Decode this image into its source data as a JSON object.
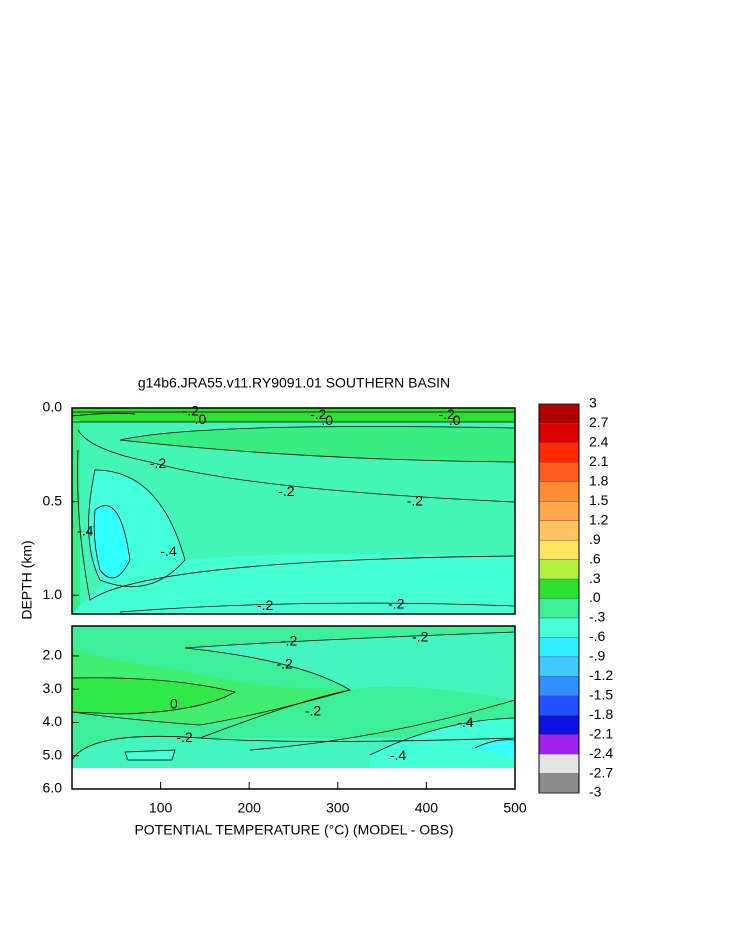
{
  "chart_data": {
    "type": "contour",
    "title": "g14b6.JRA55.v11.RY9091.01 SOUTHERN BASIN",
    "xlabel": "POTENTIAL TEMPERATURE (°C) (MODEL - OBS)",
    "ylabel": "DEPTH (km)",
    "xlim": [
      0,
      500
    ],
    "xticks": [
      100,
      200,
      300,
      400,
      500
    ],
    "panels": [
      {
        "ylim": [
          0,
          1.1
        ],
        "yticks": [
          {
            "value": 0,
            "label": "0.0"
          },
          {
            "value": 0.5,
            "label": "0.5"
          },
          {
            "value": 1,
            "label": "1.0"
          }
        ]
      },
      {
        "ylim": [
          1.1,
          6
        ],
        "yticks": [
          {
            "value": 2,
            "label": "2.0"
          },
          {
            "value": 3,
            "label": "3.0"
          },
          {
            "value": 4,
            "label": "4.0"
          },
          {
            "value": 5,
            "label": "5.0"
          },
          {
            "value": 6,
            "label": "6.0"
          }
        ]
      }
    ],
    "colorbar": {
      "clim": [
        -3,
        3
      ],
      "ticks": [
        3,
        2.7,
        2.4,
        2.1,
        1.8,
        1.5,
        1.2,
        {
          "value": 0.9,
          "label": ".9"
        },
        {
          "value": 0.6,
          "label": ".6"
        },
        {
          "value": 0.3,
          "label": ".3"
        },
        {
          "value": 0,
          "label": ".0"
        },
        {
          "value": -0.3,
          "label": "-.3"
        },
        {
          "value": -0.6,
          "label": "-.6"
        },
        {
          "value": -0.9,
          "label": "-.9"
        },
        -1.2,
        -1.5,
        -1.8,
        -2.1,
        -2.4,
        -2.7,
        -3
      ],
      "colors": [
        "#b00000",
        "#dd0000",
        "#ff2a00",
        "#ff5a20",
        "#ff8c30",
        "#ffa850",
        "#ffc460",
        "#ffe462",
        "#b4f040",
        "#30e030",
        "#3cf096",
        "#44ffd8",
        "#30f0ff",
        "#40c8ff",
        "#3090ff",
        "#2050ff",
        "#1010e0",
        "#a020f0",
        "#e4e4e4",
        "#8c8c8c"
      ]
    },
    "annotations": [
      {
        "text": "-.2",
        "panel": 0,
        "x": 134,
        "y": 0.02
      },
      {
        "text": ".0",
        "panel": 0,
        "x": 145,
        "y": 0.065
      },
      {
        "text": "-.2",
        "panel": 0,
        "x": 278,
        "y": 0.04
      },
      {
        "text": ".0",
        "panel": 0,
        "x": 288,
        "y": 0.07
      },
      {
        "text": "-.2",
        "panel": 0,
        "x": 423,
        "y": 0.04
      },
      {
        "text": ".0",
        "panel": 0,
        "x": 432,
        "y": 0.07
      },
      {
        "text": "-.2",
        "panel": 0,
        "x": 97,
        "y": 0.3
      },
      {
        "text": "-.2",
        "panel": 0,
        "x": 242,
        "y": 0.45
      },
      {
        "text": "-.2",
        "panel": 0,
        "x": 387,
        "y": 0.5
      },
      {
        "text": "-.4",
        "panel": 0,
        "x": 15,
        "y": 0.66
      },
      {
        "text": "-.4",
        "panel": 0,
        "x": 109,
        "y": 0.77
      },
      {
        "text": "-.2",
        "panel": 0,
        "x": 218,
        "y": 1.06
      },
      {
        "text": "-.2",
        "panel": 0,
        "x": 366,
        "y": 1.05
      },
      {
        "text": "-.2",
        "panel": 1,
        "x": 245,
        "y": 1.58
      },
      {
        "text": "-.2",
        "panel": 1,
        "x": 393,
        "y": 1.46
      },
      {
        "text": "-.2",
        "panel": 1,
        "x": 240,
        "y": 2.27
      },
      {
        "text": "0",
        "panel": 1,
        "x": 115,
        "y": 3.47
      },
      {
        "text": "-.2",
        "panel": 1,
        "x": 272,
        "y": 3.68
      },
      {
        "text": "-.2",
        "panel": 1,
        "x": 127,
        "y": 4.47
      },
      {
        "text": "-.4",
        "panel": 1,
        "x": 444,
        "y": 4.02
      },
      {
        "text": "-.4",
        "panel": 1,
        "x": 368,
        "y": 5.01
      }
    ]
  }
}
